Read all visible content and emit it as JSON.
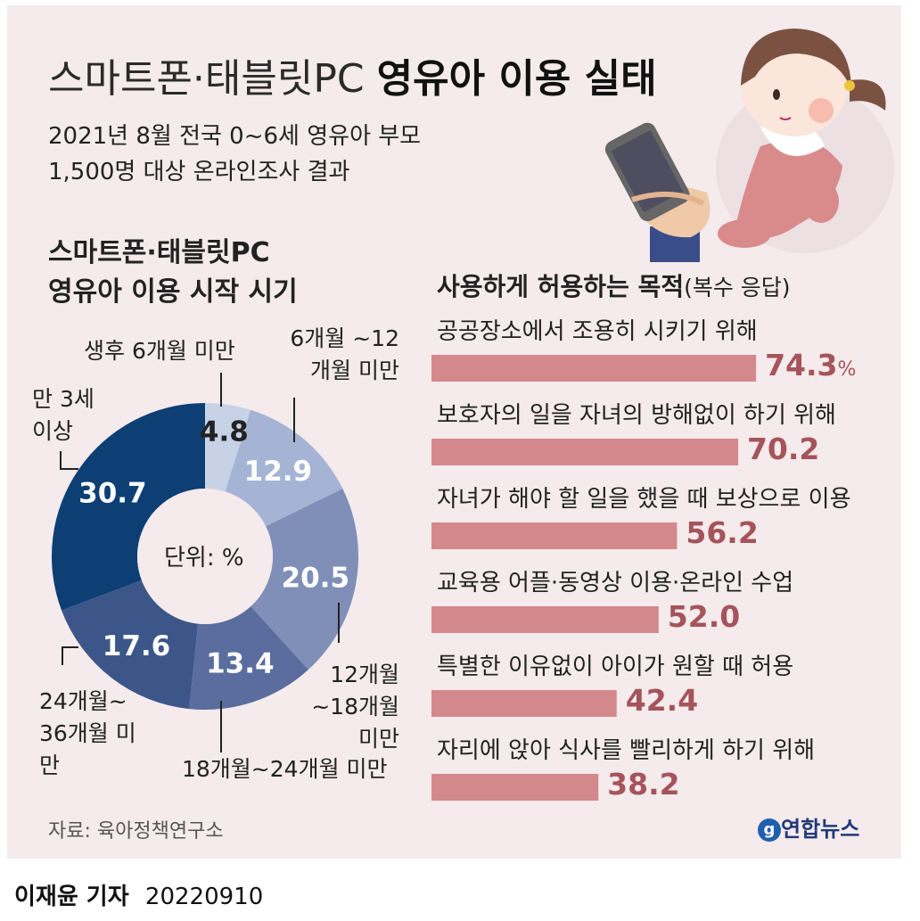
{
  "header": {
    "title_light": "스마트폰·태블릿PC",
    "title_bold": "영유아 이용 실태",
    "subtitle_line1": "2021년 8월 전국 0~6세 영유아 부모",
    "subtitle_line2": "1,500명 대상 온라인조사 결과"
  },
  "pie_section": {
    "title_line1": "스마트폰·태블릿PC",
    "title_line2": "영유아 이용 시작 시기",
    "center_label": "단위: %"
  },
  "bar_section": {
    "title": "사용하게 허용하는 목적",
    "title_note": "(복수 응답)",
    "percent_suffix": "%"
  },
  "chart_data": [
    {
      "type": "pie",
      "title": "스마트폰·태블릿PC 영유아 이용 시작 시기",
      "unit": "%",
      "slices": [
        {
          "label": "생후 6개월 미만",
          "value": 4.8,
          "color": "#c7d2e6"
        },
        {
          "label": "6개월 ~12개월 미만",
          "value": 12.9,
          "color": "#a5b4d4"
        },
        {
          "label": "12개월 ~18개월 미만",
          "value": 20.5,
          "color": "#7f8fb8"
        },
        {
          "label": "18개월~24개월 미만",
          "value": 13.4,
          "color": "#5a6d9e"
        },
        {
          "label": "24개월~ 36개월 미만",
          "value": 17.6,
          "color": "#3d5689"
        },
        {
          "label": "만 3세 이상",
          "value": 30.7,
          "color": "#0d3f75"
        }
      ]
    },
    {
      "type": "bar",
      "title": "사용하게 허용하는 목적(복수 응답)",
      "orientation": "horizontal",
      "unit": "%",
      "xlim": [
        0,
        100
      ],
      "categories": [
        "공공장소에서 조용히 시키기 위해",
        "보호자의 일을 자녀의 방해없이 하기 위해",
        "자녀가 해야 할 일을 했을 때 보상으로 이용",
        "교육용 어플·동영상 이용·온라인 수업",
        "특별한 이유없이 아이가 원할 때 허용",
        "자리에 앉아 식사를 빨리하게 하기 위해"
      ],
      "values": [
        74.3,
        70.2,
        56.2,
        52.0,
        42.4,
        38.2
      ],
      "value_labels": [
        "74.3",
        "70.2",
        "56.2",
        "52.0",
        "42.4",
        "38.2"
      ],
      "bar_color": "#d3888c"
    }
  ],
  "footer": {
    "source": "자료: 육아정책연구소",
    "brand": "연합뉴스",
    "brand_icon": "yonhap-logo-icon",
    "reporter": "이재윤 기자",
    "date": "20220910"
  },
  "illustration": {
    "name": "baby-holding-smartphone-illustration"
  }
}
